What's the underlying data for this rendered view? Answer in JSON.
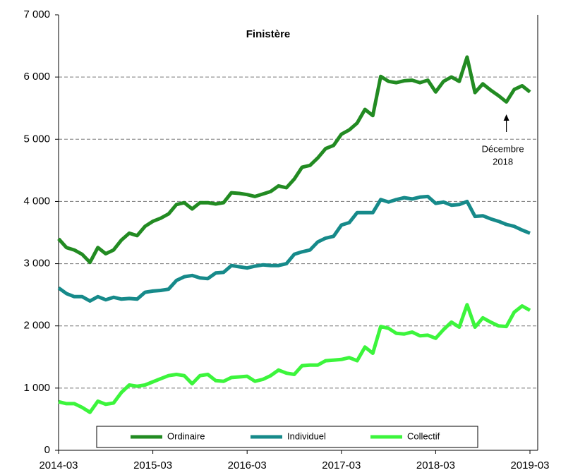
{
  "chart_data": {
    "type": "line",
    "title": "Finistère",
    "categories": [
      "2014-03",
      null,
      null,
      null,
      null,
      null,
      null,
      null,
      null,
      null,
      null,
      null,
      "2015-03",
      null,
      null,
      null,
      null,
      null,
      null,
      null,
      null,
      null,
      null,
      null,
      "2016-03",
      null,
      null,
      null,
      null,
      null,
      null,
      null,
      null,
      null,
      null,
      null,
      "2017-03",
      null,
      null,
      null,
      null,
      null,
      null,
      null,
      null,
      null,
      null,
      null,
      "2018-03",
      null,
      null,
      null,
      null,
      null,
      null,
      null,
      null,
      null,
      null,
      null,
      "2019-03"
    ],
    "series": [
      {
        "name": "Ordinaire",
        "color": "#228b22",
        "values": [
          3400,
          3260,
          3220,
          3150,
          3020,
          3260,
          3160,
          3220,
          3380,
          3490,
          3450,
          3600,
          3680,
          3730,
          3800,
          3950,
          3980,
          3880,
          3980,
          3980,
          3960,
          3980,
          4140,
          4130,
          4110,
          4080,
          4120,
          4160,
          4250,
          4220,
          4360,
          4550,
          4580,
          4700,
          4850,
          4900,
          5080,
          5150,
          5260,
          5480,
          5380,
          6010,
          5930,
          5910,
          5940,
          5950,
          5910,
          5950,
          5760,
          5930,
          6000,
          5930,
          6320,
          5750,
          5890,
          5790,
          5700,
          5600,
          5800,
          5860,
          5760
        ]
      },
      {
        "name": "Individuel",
        "color": "#168a8a",
        "values": [
          2610,
          2520,
          2470,
          2470,
          2400,
          2470,
          2420,
          2460,
          2430,
          2440,
          2430,
          2540,
          2560,
          2570,
          2590,
          2730,
          2790,
          2810,
          2770,
          2760,
          2850,
          2860,
          2970,
          2950,
          2930,
          2960,
          2980,
          2970,
          2970,
          3000,
          3150,
          3190,
          3220,
          3350,
          3410,
          3440,
          3620,
          3660,
          3820,
          3820,
          3820,
          4030,
          3990,
          4030,
          4060,
          4040,
          4070,
          4080,
          3970,
          3990,
          3940,
          3950,
          4000,
          3760,
          3770,
          3720,
          3680,
          3630,
          3600,
          3540,
          3490
        ]
      },
      {
        "name": "Collectif",
        "color": "#3cf53c",
        "values": [
          780,
          750,
          750,
          690,
          610,
          790,
          740,
          760,
          930,
          1050,
          1030,
          1050,
          1100,
          1150,
          1200,
          1220,
          1200,
          1070,
          1200,
          1220,
          1120,
          1110,
          1170,
          1180,
          1190,
          1110,
          1140,
          1200,
          1290,
          1240,
          1220,
          1360,
          1370,
          1370,
          1440,
          1450,
          1460,
          1490,
          1440,
          1660,
          1560,
          1990,
          1960,
          1880,
          1870,
          1900,
          1840,
          1850,
          1800,
          1940,
          2060,
          1980,
          2340,
          1980,
          2130,
          2060,
          2000,
          1990,
          2220,
          2320,
          2250
        ]
      }
    ],
    "ylim": [
      0,
      7000
    ],
    "yticks": [
      0,
      {
        "value": 1000,
        "label": "1 000"
      },
      {
        "value": 2000,
        "label": "2 000"
      },
      {
        "value": 3000,
        "label": "3 000"
      },
      {
        "value": 4000,
        "label": "4 000"
      },
      {
        "value": 5000,
        "label": "5 000"
      },
      {
        "value": 6000,
        "label": "6 000"
      },
      {
        "value": 7000,
        "label": "7 000"
      }
    ],
    "grid": true,
    "legend": "bottom",
    "annotation": [
      "Décembre",
      "2018"
    ]
  }
}
